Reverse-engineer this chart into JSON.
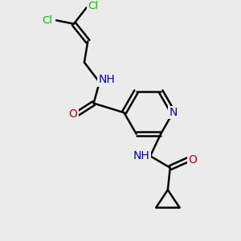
{
  "bg_color": "#ebebeb",
  "bond_color": "#000000",
  "bond_width": 1.8,
  "atom_colors": {
    "C": "#000000",
    "N": "#0000cc",
    "O": "#cc0000",
    "Cl": "#00bb00",
    "H": "#888888"
  },
  "figsize": [
    3.0,
    3.0
  ],
  "dpi": 100,
  "font_size": 10.0
}
